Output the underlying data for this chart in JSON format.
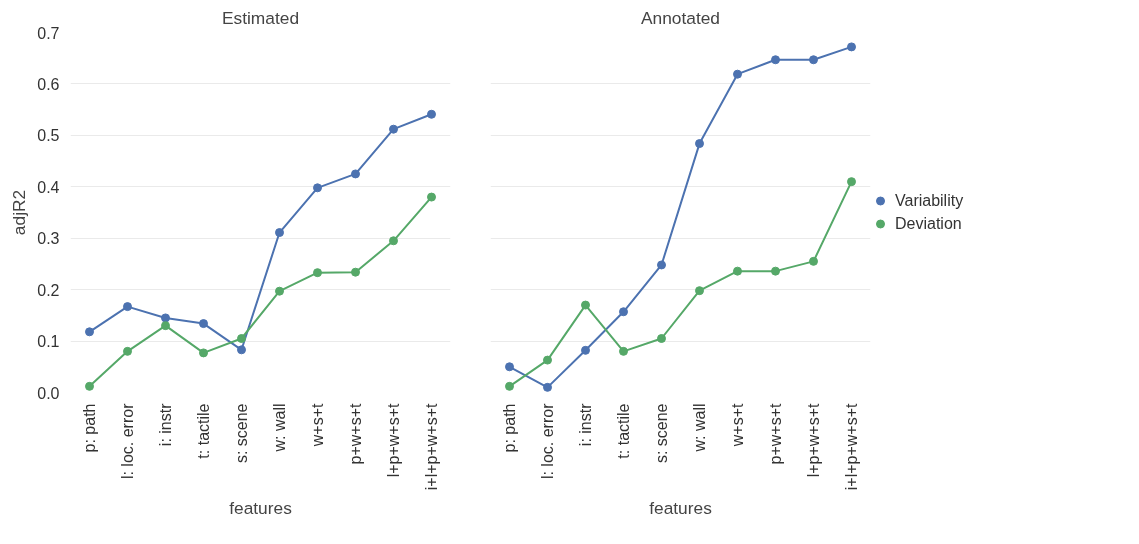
{
  "chart_data": [
    {
      "type": "line",
      "title": "Estimated",
      "xlabel": "features",
      "ylabel": "adjR2",
      "categories": [
        "p: path",
        "l: loc. error",
        "i: instr",
        "t: tactile",
        "s: scene",
        "w: wall",
        "w+s+t",
        "p+w+s+t",
        "l+p+w+s+t",
        "i+l+p+w+s+t"
      ],
      "series": [
        {
          "color": "#4c72b0",
          "values": [
            0.118,
            0.167,
            0.145,
            0.134,
            0.083,
            0.311,
            0.398,
            0.425,
            0.512,
            0.541
          ]
        },
        {
          "color": "#55a868",
          "values": [
            0.012,
            0.08,
            0.13,
            0.077,
            0.105,
            0.197,
            0.233,
            0.234,
            0.295,
            0.38
          ]
        }
      ],
      "ylim": [
        0,
        0.7
      ],
      "yticks": [
        {
          "value": 0,
          "label": "0.0"
        },
        0.1,
        0.2,
        0.3,
        0.4,
        0.5,
        0.6,
        0.7
      ],
      "grid": "y",
      "marker": "circle",
      "line_style": "solid"
    },
    {
      "type": "line",
      "title": "Annotated",
      "xlabel": "features",
      "categories": [
        "p: path",
        "l: loc. error",
        "i: instr",
        "t: tactile",
        "s: scene",
        "w: wall",
        "w+s+t",
        "p+w+s+t",
        "l+p+w+s+t",
        "i+l+p+w+s+t"
      ],
      "series": [
        {
          "name": "Variability",
          "color": "#4c72b0",
          "values": [
            0.05,
            0.01,
            0.082,
            0.157,
            0.248,
            0.484,
            0.619,
            0.647,
            0.647,
            0.672
          ]
        },
        {
          "name": "Deviation",
          "color": "#55a868",
          "values": [
            0.012,
            0.063,
            0.17,
            0.08,
            0.105,
            0.198,
            0.236,
            0.236,
            0.255,
            0.41
          ]
        }
      ],
      "ylim": [
        0,
        0.7
      ],
      "yticks": [
        0,
        0.1,
        0.2,
        0.3,
        0.4,
        0.5,
        0.6,
        0.7
      ],
      "grid": "y",
      "marker": "circle",
      "line_style": "solid",
      "tick_labels": "x",
      "legend": "right"
    }
  ]
}
